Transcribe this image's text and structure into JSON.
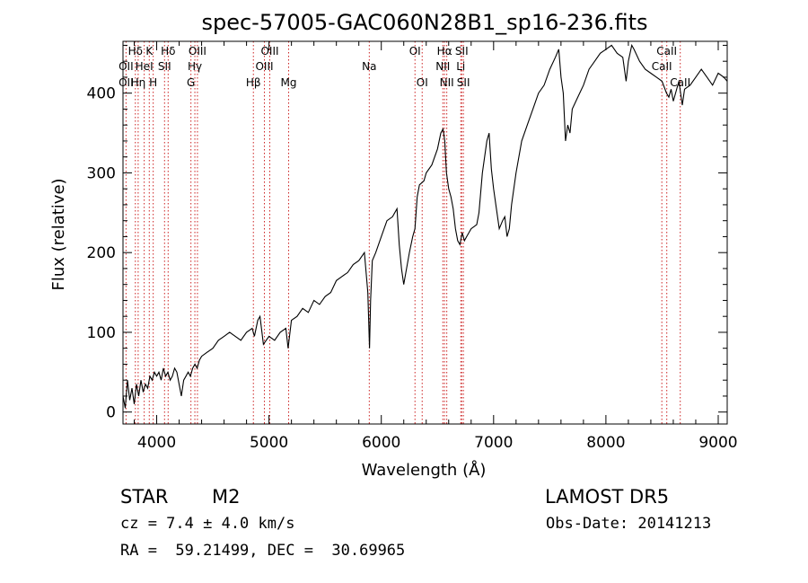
{
  "chart_data": {
    "type": "line",
    "title": "spec-57005-GAC060N28B1_sp16-236.fits",
    "xlabel": "Wavelength (Å)",
    "ylabel": "Flux (relative)",
    "xlim": [
      3700,
      9080
    ],
    "ylim": [
      -15,
      465
    ],
    "xticks": [
      4000,
      5000,
      6000,
      7000,
      8000,
      9000
    ],
    "yticks": [
      0,
      100,
      200,
      300,
      400
    ],
    "grid": false,
    "line_color": "#000000",
    "marker_color": "#cc2222",
    "series": [
      {
        "x": [
          3700,
          3720,
          3740,
          3760,
          3780,
          3800,
          3820,
          3840,
          3860,
          3880,
          3900,
          3920,
          3940,
          3960,
          3980,
          4000,
          4020,
          4040,
          4060,
          4080,
          4100,
          4120,
          4140,
          4160,
          4180,
          4200,
          4220,
          4240,
          4260,
          4280,
          4300,
          4320,
          4340,
          4360,
          4380,
          4400,
          4450,
          4500,
          4550,
          4600,
          4650,
          4700,
          4750,
          4800,
          4850,
          4870,
          4900,
          4920,
          4950,
          5000,
          5050,
          5100,
          5150,
          5170,
          5200,
          5250,
          5300,
          5350,
          5400,
          5450,
          5500,
          5550,
          5600,
          5650,
          5700,
          5750,
          5800,
          5850,
          5880,
          5895,
          5905,
          5920,
          5950,
          6000,
          6050,
          6100,
          6120,
          6140,
          6160,
          6180,
          6200,
          6250,
          6280,
          6300,
          6320,
          6340,
          6380,
          6400,
          6450,
          6500,
          6530,
          6550,
          6565,
          6580,
          6600,
          6620,
          6640,
          6660,
          6680,
          6700,
          6720,
          6740,
          6760,
          6800,
          6850,
          6870,
          6900,
          6940,
          6960,
          6980,
          7000,
          7020,
          7050,
          7080,
          7100,
          7120,
          7140,
          7160,
          7200,
          7250,
          7300,
          7350,
          7400,
          7450,
          7500,
          7550,
          7580,
          7600,
          7620,
          7640,
          7660,
          7680,
          7700,
          7750,
          7800,
          7850,
          7900,
          7950,
          8000,
          8050,
          8100,
          8150,
          8180,
          8200,
          8230,
          8250,
          8300,
          8350,
          8400,
          8450,
          8500,
          8540,
          8560,
          8580,
          8600,
          8650,
          8665,
          8680,
          8700,
          8750,
          8800,
          8850,
          8900,
          8950,
          9000,
          9050,
          9080
        ],
        "y": [
          20,
          5,
          40,
          15,
          30,
          10,
          35,
          20,
          40,
          25,
          35,
          30,
          45,
          40,
          50,
          45,
          50,
          40,
          55,
          45,
          50,
          40,
          45,
          55,
          50,
          35,
          20,
          40,
          45,
          50,
          45,
          55,
          60,
          55,
          65,
          70,
          75,
          80,
          90,
          95,
          100,
          95,
          90,
          100,
          105,
          95,
          115,
          120,
          85,
          95,
          90,
          100,
          105,
          80,
          115,
          120,
          130,
          125,
          140,
          135,
          145,
          150,
          165,
          170,
          175,
          185,
          190,
          200,
          150,
          80,
          140,
          190,
          200,
          220,
          240,
          245,
          250,
          255,
          210,
          180,
          160,
          200,
          220,
          230,
          270,
          285,
          290,
          300,
          310,
          330,
          350,
          355,
          340,
          300,
          280,
          270,
          255,
          230,
          215,
          210,
          225,
          215,
          220,
          230,
          235,
          250,
          300,
          340,
          350,
          305,
          280,
          260,
          230,
          240,
          245,
          220,
          230,
          260,
          300,
          340,
          360,
          380,
          400,
          410,
          430,
          445,
          455,
          420,
          400,
          340,
          360,
          350,
          380,
          395,
          410,
          430,
          440,
          450,
          455,
          460,
          450,
          445,
          415,
          440,
          460,
          455,
          440,
          430,
          425,
          420,
          415,
          400,
          395,
          405,
          390,
          415,
          400,
          385,
          405,
          410,
          420,
          430,
          420,
          410,
          425,
          420,
          415
        ]
      }
    ],
    "spectral_lines": [
      {
        "label": "Hδ",
        "wave": 3810,
        "row": 0
      },
      {
        "label": "K",
        "wave": 3934,
        "row": 0
      },
      {
        "label": "Hδ",
        "wave": 4102,
        "row": 0
      },
      {
        "label": "OIII",
        "wave": 4363,
        "row": 0
      },
      {
        "label": "OIII",
        "wave": 5007,
        "row": 0
      },
      {
        "label": "OI",
        "wave": 6300,
        "row": 0
      },
      {
        "label": "Hα",
        "wave": 6563,
        "row": 0
      },
      {
        "label": "SII",
        "wave": 6716,
        "row": 0
      },
      {
        "label": "CaII",
        "wave": 8542,
        "row": 0
      },
      {
        "label": "OII",
        "wave": 3727,
        "row": 1
      },
      {
        "label": "HeI",
        "wave": 3889,
        "row": 1
      },
      {
        "label": "SII",
        "wave": 4070,
        "row": 1
      },
      {
        "label": "Hγ",
        "wave": 4340,
        "row": 1
      },
      {
        "label": "OIII",
        "wave": 4959,
        "row": 1
      },
      {
        "label": "Na",
        "wave": 5893,
        "row": 1
      },
      {
        "label": "NII",
        "wave": 6548,
        "row": 1
      },
      {
        "label": "Li",
        "wave": 6708,
        "row": 1
      },
      {
        "label": "CaII",
        "wave": 8498,
        "row": 1
      },
      {
        "label": "OII",
        "wave": 3727,
        "row": 2
      },
      {
        "label": "Hη",
        "wave": 3835,
        "row": 2
      },
      {
        "label": "H",
        "wave": 3969,
        "row": 2
      },
      {
        "label": "G",
        "wave": 4305,
        "row": 2
      },
      {
        "label": "Hβ",
        "wave": 4861,
        "row": 2
      },
      {
        "label": "Mg",
        "wave": 5175,
        "row": 2
      },
      {
        "label": "OI",
        "wave": 6364,
        "row": 2
      },
      {
        "label": "NII",
        "wave": 6583,
        "row": 2
      },
      {
        "label": "SII",
        "wave": 6731,
        "row": 2
      },
      {
        "label": "CaII",
        "wave": 8662,
        "row": 2
      }
    ]
  },
  "info": {
    "object_class": "STAR",
    "subclass": "M2",
    "release": "LAMOST DR5",
    "redshift": "cz = 7.4 ± 4.0 km/s",
    "obs_date": "Obs-Date: 20141213",
    "coords": "RA =  59.21499, DEC =  30.69965"
  }
}
